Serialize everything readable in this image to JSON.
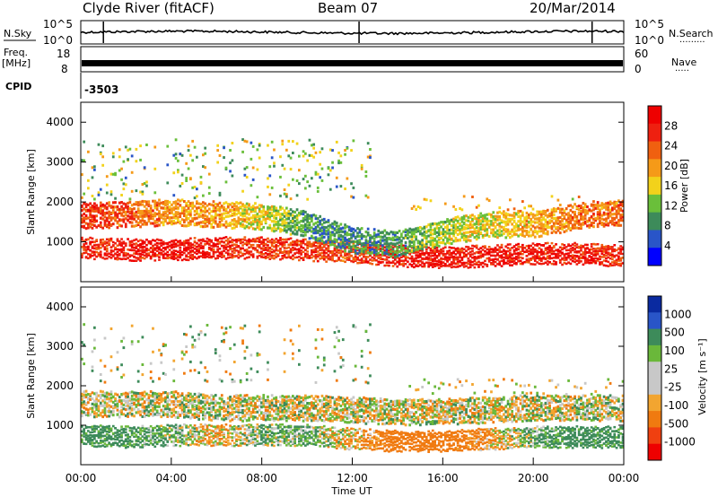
{
  "header": {
    "title": "Clyde River (fitACF)",
    "beam": "Beam 07",
    "date": "20/Mar/2014"
  },
  "noise_panel": {
    "left_label": "N.Sky",
    "left_ticks": [
      "10^5",
      "10^0"
    ],
    "right_ticks": [
      "10^5",
      "10^0"
    ],
    "right_label": "N.Search",
    "right_label_dots": "·········"
  },
  "freq_panel": {
    "left_label_1": "Freq.",
    "left_label_2": "[MHz]",
    "left_ticks": [
      "18",
      "8"
    ],
    "right_ticks": [
      "60",
      "0"
    ],
    "right_label": "Nave",
    "right_label_dots": "·····"
  },
  "cpid_panel": {
    "label": "CPID",
    "value": "-3503"
  },
  "xaxis": {
    "label": "Time UT",
    "ticks": [
      "00:00",
      "04:00",
      "08:00",
      "12:00",
      "16:00",
      "20:00",
      "00:00"
    ]
  },
  "colors": {
    "power": [
      "#0000ff",
      "#2955c8",
      "#3d8b5a",
      "#6abf3a",
      "#f2d21b",
      "#f59a18",
      "#f06010",
      "#ee2010",
      "#ee0000"
    ],
    "velocity": [
      "#ee0000",
      "#f04010",
      "#f07a10",
      "#f2a530",
      "#c8c8c8",
      "#c8c8c8",
      "#6ab83a",
      "#3d8b5a",
      "#2955c8",
      "#0a2aa0"
    ]
  },
  "chart_data": [
    {
      "type": "heatmap",
      "title": "",
      "xlabel": "",
      "ylabel": "Slant Range [km]",
      "x_range_hours": [
        0,
        24
      ],
      "ylim": [
        0,
        4500
      ],
      "yticks": [
        "1000",
        "2000",
        "3000",
        "4000"
      ],
      "colorbar": {
        "label": "Power [dB]",
        "ticks": [
          "4",
          "8",
          "12",
          "16",
          "20",
          "24",
          "28"
        ],
        "range": [
          0,
          32
        ]
      },
      "series": [
        {
          "x": [
            0,
            2,
            4,
            6,
            8,
            10,
            12,
            14,
            16,
            18,
            20,
            22,
            24
          ],
          "y": [
            900,
            850,
            850,
            900,
            900,
            850,
            800,
            700,
            650,
            700,
            750,
            750,
            700
          ],
          "value_db": [
            26,
            28,
            28,
            27,
            26,
            26,
            24,
            28,
            28,
            28,
            28,
            28,
            26
          ]
        },
        {
          "x": [
            0,
            2,
            4,
            6,
            8,
            10,
            12,
            14,
            16,
            18,
            20,
            22,
            24
          ],
          "y": [
            1700,
            1750,
            1800,
            1750,
            1700,
            1500,
            1100,
            1000,
            1300,
            1500,
            1500,
            1700,
            1800
          ],
          "value_db": [
            26,
            24,
            20,
            20,
            16,
            10,
            8,
            10,
            14,
            16,
            18,
            22,
            24
          ]
        }
      ]
    },
    {
      "type": "heatmap",
      "title": "",
      "xlabel": "Time UT",
      "ylabel": "Slant Range [km]",
      "x_range_hours": [
        0,
        24
      ],
      "ylim": [
        0,
        4500
      ],
      "yticks": [
        "1000",
        "2000",
        "3000",
        "4000"
      ],
      "colorbar": {
        "label": "Velocity [m s⁻¹]",
        "ticks": [
          "1000",
          "500",
          "100",
          "25",
          "-25",
          "-100",
          "-500",
          "-1000"
        ]
      },
      "series": [
        {
          "x": [
            0,
            2,
            4,
            6,
            8,
            10,
            12,
            14,
            16,
            18,
            20,
            22,
            24
          ],
          "y": [
            800,
            750,
            800,
            800,
            800,
            800,
            700,
            650,
            650,
            700,
            750,
            750,
            750
          ],
          "velocity_ms": [
            200,
            200,
            100,
            -100,
            100,
            100,
            -50,
            -300,
            -300,
            -100,
            100,
            200,
            200
          ]
        },
        {
          "x": [
            0,
            2,
            4,
            6,
            8,
            10,
            12,
            14,
            16,
            18,
            20,
            22,
            24
          ],
          "y": [
            1600,
            1600,
            1600,
            1500,
            1500,
            1500,
            1450,
            1400,
            1400,
            1450,
            1500,
            1500,
            1500
          ],
          "velocity_ms": [
            0,
            0,
            0,
            0,
            0,
            0,
            0,
            0,
            0,
            0,
            0,
            0,
            0
          ]
        }
      ]
    }
  ]
}
